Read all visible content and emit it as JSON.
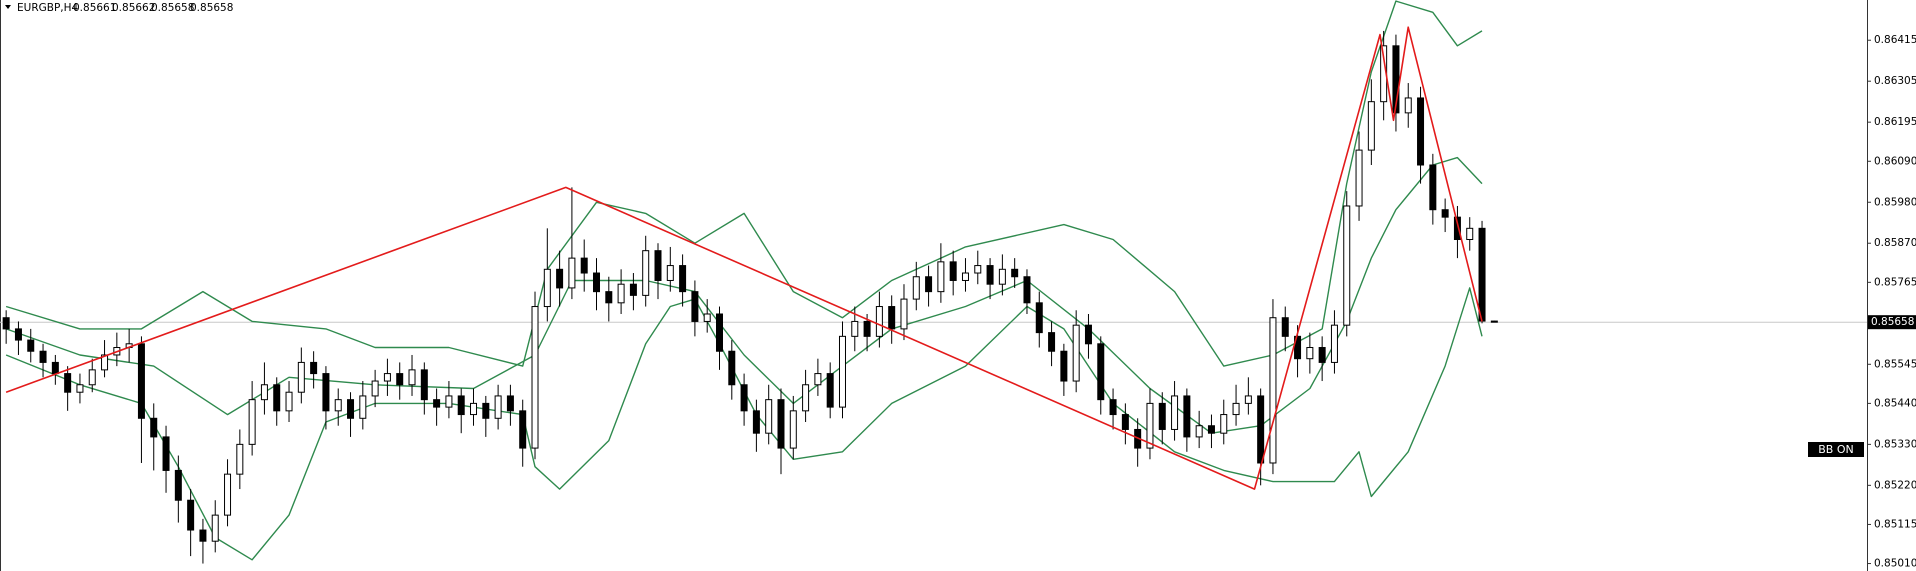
{
  "chart_data": {
    "type": "candlestick",
    "symbol": "EURGBP,H4",
    "annotation": "BB ON",
    "bid": 0.85658,
    "bull_color": "#ffffff",
    "bear_color": "#000000",
    "xlim": [
      -0.5,
      151.3
    ],
    "ylim": [
      0.8499,
      0.86523
    ],
    "yticks": [
      0.86415,
      0.86305,
      0.86195,
      {
        "value": 0.8609,
        "label": "0.86090"
      },
      {
        "value": 0.8598,
        "label": "0.85980"
      },
      {
        "value": 0.8587,
        "label": "0.85870"
      },
      0.85765,
      0.85545,
      {
        "value": 0.8544,
        "label": "0.85440"
      },
      {
        "value": 0.8533,
        "label": "0.85330"
      },
      {
        "value": 0.8522,
        "label": "0.85220"
      },
      0.85115,
      {
        "value": 0.8501,
        "label": "0.85010"
      }
    ],
    "candles": [
      [
        0.8567,
        0.8569,
        0.856,
        0.8564
      ],
      [
        0.8564,
        0.8566,
        0.8557,
        0.8561
      ],
      [
        0.8561,
        0.8564,
        0.8555,
        0.8558
      ],
      [
        0.8558,
        0.856,
        0.8551,
        0.8555
      ],
      [
        0.8555,
        0.8557,
        0.8549,
        0.8552
      ],
      [
        0.8552,
        0.8554,
        0.8542,
        0.8547
      ],
      [
        0.8547,
        0.8552,
        0.8544,
        0.8549
      ],
      [
        0.8549,
        0.8556,
        0.8547,
        0.8553
      ],
      [
        0.8553,
        0.8561,
        0.8551,
        0.8557
      ],
      [
        0.8557,
        0.8563,
        0.8554,
        0.8559
      ],
      [
        0.8559,
        0.8564,
        0.8555,
        0.856
      ],
      [
        0.856,
        0.8562,
        0.8528,
        0.854
      ],
      [
        0.854,
        0.8544,
        0.8526,
        0.8535
      ],
      [
        0.8535,
        0.8538,
        0.852,
        0.8526
      ],
      [
        0.8526,
        0.853,
        0.8512,
        0.8518
      ],
      [
        0.8518,
        0.8521,
        0.8503,
        0.851
      ],
      [
        0.851,
        0.8513,
        0.8501,
        0.8507
      ],
      [
        0.8507,
        0.8518,
        0.8504,
        0.8514
      ],
      [
        0.8514,
        0.8529,
        0.8511,
        0.8525
      ],
      [
        0.8525,
        0.8537,
        0.8521,
        0.8533
      ],
      [
        0.8533,
        0.855,
        0.853,
        0.8545
      ],
      [
        0.8545,
        0.8555,
        0.8541,
        0.8549
      ],
      [
        0.8549,
        0.8551,
        0.8538,
        0.8542
      ],
      [
        0.8542,
        0.855,
        0.8539,
        0.8547
      ],
      [
        0.8547,
        0.8559,
        0.8544,
        0.8555
      ],
      [
        0.8555,
        0.8558,
        0.8548,
        0.8552
      ],
      [
        0.8552,
        0.8554,
        0.8537,
        0.8542
      ],
      [
        0.8542,
        0.8548,
        0.8538,
        0.8545
      ],
      [
        0.8545,
        0.8547,
        0.8535,
        0.854
      ],
      [
        0.854,
        0.855,
        0.8537,
        0.8546
      ],
      [
        0.8546,
        0.8553,
        0.8543,
        0.855
      ],
      [
        0.855,
        0.8556,
        0.8546,
        0.8552
      ],
      [
        0.8552,
        0.8555,
        0.8545,
        0.8549
      ],
      [
        0.8549,
        0.8557,
        0.8546,
        0.8553
      ],
      [
        0.8553,
        0.8555,
        0.8541,
        0.8545
      ],
      [
        0.8545,
        0.8548,
        0.8538,
        0.8543
      ],
      [
        0.8543,
        0.855,
        0.854,
        0.8546
      ],
      [
        0.8546,
        0.8548,
        0.8536,
        0.8541
      ],
      [
        0.8541,
        0.8548,
        0.8538,
        0.8544
      ],
      [
        0.8544,
        0.8546,
        0.8535,
        0.854
      ],
      [
        0.854,
        0.8549,
        0.8537,
        0.8546
      ],
      [
        0.8546,
        0.8549,
        0.8538,
        0.8542
      ],
      [
        0.8542,
        0.8545,
        0.8527,
        0.8532
      ],
      [
        0.8532,
        0.8574,
        0.8529,
        0.857
      ],
      [
        0.857,
        0.8591,
        0.8566,
        0.858
      ],
      [
        0.858,
        0.8585,
        0.857,
        0.8575
      ],
      [
        0.8575,
        0.8602,
        0.8572,
        0.8583
      ],
      [
        0.8583,
        0.8588,
        0.8574,
        0.8579
      ],
      [
        0.8579,
        0.8583,
        0.8569,
        0.8574
      ],
      [
        0.8574,
        0.8578,
        0.8566,
        0.8571
      ],
      [
        0.8571,
        0.858,
        0.8568,
        0.8576
      ],
      [
        0.8576,
        0.8579,
        0.8569,
        0.8573
      ],
      [
        0.8573,
        0.8589,
        0.857,
        0.8585
      ],
      [
        0.8585,
        0.8587,
        0.8572,
        0.8577
      ],
      [
        0.8577,
        0.8586,
        0.8574,
        0.8581
      ],
      [
        0.8581,
        0.8584,
        0.857,
        0.8574
      ],
      [
        0.8574,
        0.8577,
        0.8562,
        0.8566
      ],
      [
        0.8566,
        0.8572,
        0.8563,
        0.8568
      ],
      [
        0.8568,
        0.857,
        0.8553,
        0.8558
      ],
      [
        0.8558,
        0.8561,
        0.8545,
        0.8549
      ],
      [
        0.8549,
        0.8552,
        0.8538,
        0.8542
      ],
      [
        0.8542,
        0.8545,
        0.8531,
        0.8536
      ],
      [
        0.8536,
        0.8549,
        0.8533,
        0.8545
      ],
      [
        0.8545,
        0.8548,
        0.8525,
        0.8532
      ],
      [
        0.8532,
        0.8546,
        0.8529,
        0.8542
      ],
      [
        0.8542,
        0.8553,
        0.8539,
        0.8549
      ],
      [
        0.8549,
        0.8556,
        0.8546,
        0.8552
      ],
      [
        0.8552,
        0.8555,
        0.854,
        0.8543
      ],
      [
        0.8543,
        0.8566,
        0.854,
        0.8562
      ],
      [
        0.8562,
        0.857,
        0.8558,
        0.8566
      ],
      [
        0.8566,
        0.8568,
        0.8558,
        0.8562
      ],
      [
        0.8562,
        0.8574,
        0.8559,
        0.857
      ],
      [
        0.857,
        0.8573,
        0.856,
        0.8564
      ],
      [
        0.8564,
        0.8576,
        0.8561,
        0.8572
      ],
      [
        0.8572,
        0.8582,
        0.8569,
        0.8578
      ],
      [
        0.8578,
        0.8581,
        0.857,
        0.8574
      ],
      [
        0.8574,
        0.8587,
        0.8571,
        0.8582
      ],
      [
        0.8582,
        0.8585,
        0.8573,
        0.8577
      ],
      [
        0.8577,
        0.8583,
        0.8574,
        0.8579
      ],
      [
        0.8579,
        0.8585,
        0.8576,
        0.8581
      ],
      [
        0.8581,
        0.8583,
        0.8572,
        0.8576
      ],
      [
        0.8576,
        0.8584,
        0.8573,
        0.858
      ],
      [
        0.858,
        0.8583,
        0.8575,
        0.8578
      ],
      [
        0.8578,
        0.858,
        0.8568,
        0.8571
      ],
      [
        0.8571,
        0.8574,
        0.8559,
        0.8563
      ],
      [
        0.8563,
        0.8566,
        0.8554,
        0.8558
      ],
      [
        0.8558,
        0.856,
        0.8546,
        0.855
      ],
      [
        0.855,
        0.8569,
        0.8547,
        0.8565
      ],
      [
        0.8565,
        0.8568,
        0.8556,
        0.856
      ],
      [
        0.856,
        0.8562,
        0.8541,
        0.8545
      ],
      [
        0.8545,
        0.8548,
        0.8537,
        0.8541
      ],
      [
        0.8541,
        0.8544,
        0.8533,
        0.8537
      ],
      [
        0.8537,
        0.854,
        0.8527,
        0.8532
      ],
      [
        0.8532,
        0.8548,
        0.8529,
        0.8544
      ],
      [
        0.8544,
        0.8547,
        0.8533,
        0.8537
      ],
      [
        0.8537,
        0.855,
        0.8534,
        0.8546
      ],
      [
        0.8546,
        0.8548,
        0.8531,
        0.8535
      ],
      [
        0.8535,
        0.8542,
        0.8532,
        0.8538
      ],
      [
        0.8538,
        0.8541,
        0.8532,
        0.8536
      ],
      [
        0.8536,
        0.8545,
        0.8533,
        0.8541
      ],
      [
        0.8541,
        0.8549,
        0.8538,
        0.8544
      ],
      [
        0.8544,
        0.8551,
        0.8541,
        0.8546
      ],
      [
        0.8546,
        0.8548,
        0.8522,
        0.8528
      ],
      [
        0.8528,
        0.8572,
        0.8525,
        0.8567
      ],
      [
        0.8567,
        0.857,
        0.8558,
        0.8562
      ],
      [
        0.8562,
        0.8565,
        0.8551,
        0.8556
      ],
      [
        0.8556,
        0.8563,
        0.8552,
        0.8559
      ],
      [
        0.8559,
        0.8562,
        0.855,
        0.8555
      ],
      [
        0.8555,
        0.8569,
        0.8552,
        0.8565
      ],
      [
        0.8565,
        0.8601,
        0.8562,
        0.8597
      ],
      [
        0.8597,
        0.8617,
        0.8593,
        0.8612
      ],
      [
        0.8612,
        0.8631,
        0.8608,
        0.8625
      ],
      [
        0.8625,
        0.8644,
        0.862,
        0.864
      ],
      [
        0.864,
        0.8643,
        0.8617,
        0.8622
      ],
      [
        0.8622,
        0.863,
        0.8618,
        0.8626
      ],
      [
        0.8626,
        0.8629,
        0.8603,
        0.8608
      ],
      [
        0.8608,
        0.8611,
        0.8592,
        0.8596
      ],
      [
        0.8596,
        0.8599,
        0.859,
        0.8594
      ],
      [
        0.8594,
        0.8597,
        0.8583,
        0.8588
      ],
      [
        0.8588,
        0.8594,
        0.8585,
        0.8591
      ],
      [
        0.8591,
        0.8593,
        0.85655,
        0.85661
      ],
      [
        0.85661,
        0.85662,
        0.85658,
        0.85658
      ]
    ],
    "bands": [
      {
        "color": "#2f8a4e",
        "x": [
          0,
          6,
          11,
          16,
          20,
          26,
          30,
          36,
          42,
          44,
          48,
          52,
          56,
          60,
          64,
          68,
          72,
          78,
          86,
          90,
          95,
          99,
          103,
          107,
          109,
          111,
          113,
          116,
          118,
          120
        ],
        "values": [
          0.857,
          0.8564,
          0.8564,
          0.8574,
          0.8566,
          0.8564,
          0.8559,
          0.8559,
          0.8554,
          0.858,
          0.8598,
          0.8595,
          0.8587,
          0.8595,
          0.8574,
          0.8567,
          0.8577,
          0.8586,
          0.8592,
          0.8588,
          0.8574,
          0.8554,
          0.8557,
          0.8564,
          0.8603,
          0.8633,
          0.8652,
          0.8649,
          0.864,
          0.8644
        ]
      },
      {
        "color": "#2f8a4e",
        "x": [
          0,
          6,
          12,
          18,
          23,
          30,
          38,
          43,
          46,
          52,
          56,
          60,
          64,
          68,
          72,
          78,
          83,
          88,
          93,
          98,
          102,
          106,
          109,
          111,
          113,
          116,
          118,
          120
        ],
        "values": [
          0.8564,
          0.8557,
          0.8554,
          0.8541,
          0.8551,
          0.8549,
          0.8548,
          0.8557,
          0.8577,
          0.8577,
          0.8574,
          0.8557,
          0.8544,
          0.8554,
          0.8564,
          0.857,
          0.8577,
          0.8564,
          0.8548,
          0.8536,
          0.8538,
          0.8548,
          0.8566,
          0.8583,
          0.8596,
          0.8608,
          0.861,
          0.8603
        ]
      },
      {
        "color": "#2f8a4e",
        "x": [
          0,
          6,
          11,
          14,
          17,
          20,
          23,
          26,
          30,
          36,
          42,
          43,
          45,
          49,
          52,
          54,
          56,
          58,
          61,
          64,
          68,
          72,
          78,
          83,
          86,
          90,
          95,
          99,
          103,
          108,
          110,
          111,
          114,
          117,
          119,
          120
        ],
        "values": [
          0.8557,
          0.8549,
          0.8544,
          0.8527,
          0.8508,
          0.8502,
          0.8514,
          0.8539,
          0.8544,
          0.8544,
          0.8541,
          0.8527,
          0.8521,
          0.8534,
          0.856,
          0.857,
          0.8572,
          0.856,
          0.8541,
          0.8529,
          0.8531,
          0.8544,
          0.8554,
          0.857,
          0.8564,
          0.8544,
          0.8531,
          0.8526,
          0.8523,
          0.8523,
          0.8531,
          0.8519,
          0.8531,
          0.8554,
          0.8575,
          0.8562
        ]
      }
    ],
    "zigzag": {
      "color": "#e31b1b",
      "x": [
        0,
        45.5,
        101.5,
        111.7,
        112.8,
        114,
        120
      ],
      "values": [
        0.8547,
        0.8602,
        0.8521,
        0.8643,
        0.862,
        0.8645,
        0.8566
      ]
    }
  }
}
